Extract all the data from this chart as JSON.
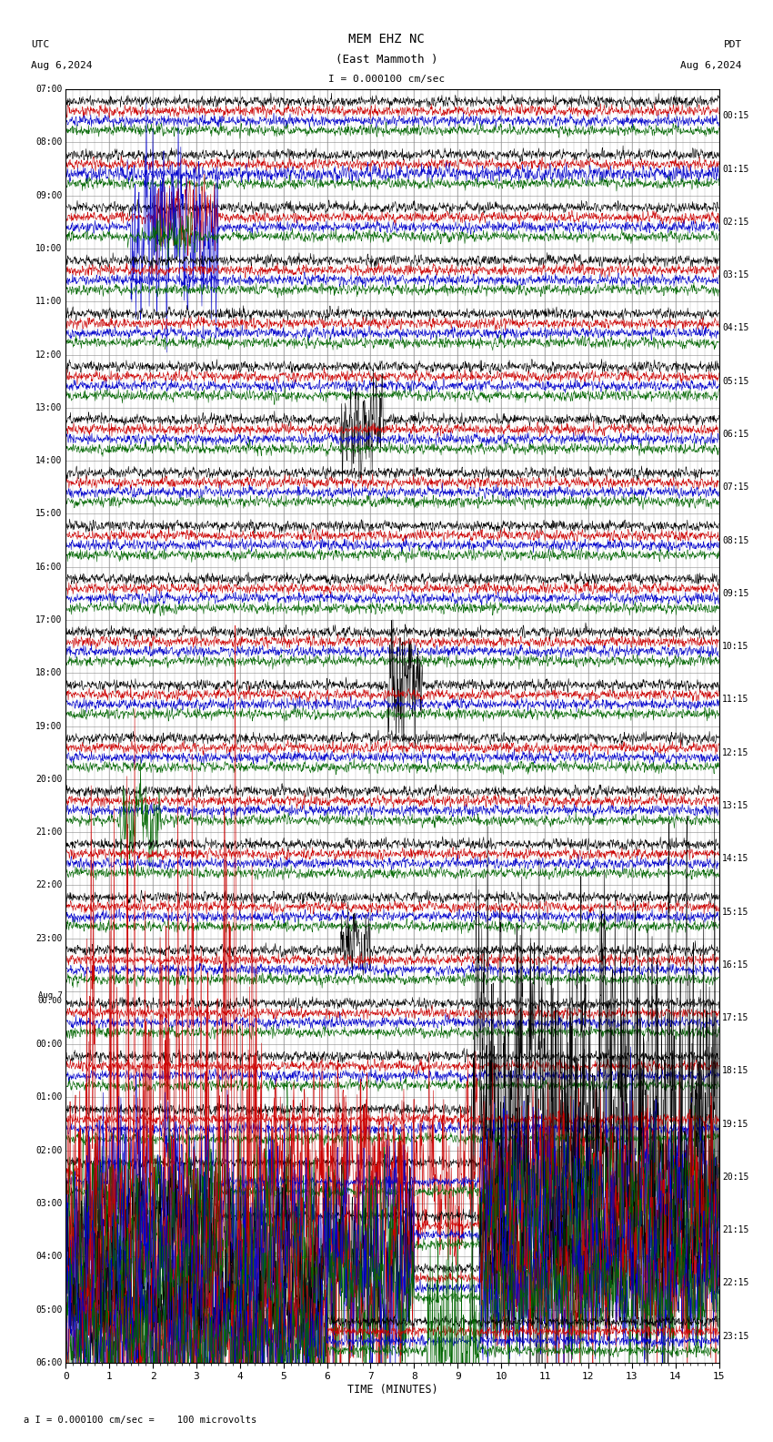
{
  "title_line1": "MEM EHZ NC",
  "title_line2": "(East Mammoth )",
  "scale_text": "I = 0.000100 cm/sec",
  "utc_label": "UTC",
  "pdt_label": "PDT",
  "date_left": "Aug 6,2024",
  "date_right": "Aug 6,2024",
  "bottom_label": "a I = 0.000100 cm/sec =    100 microvolts",
  "xlabel": "TIME (MINUTES)",
  "background_color": "#ffffff",
  "trace_colors": [
    "#000000",
    "#cc0000",
    "#0000cc",
    "#006600"
  ],
  "grid_color": "#888888",
  "text_color": "#000000",
  "left_times_utc": [
    "07:00",
    "08:00",
    "09:00",
    "10:00",
    "11:00",
    "12:00",
    "13:00",
    "14:00",
    "15:00",
    "16:00",
    "17:00",
    "18:00",
    "19:00",
    "20:00",
    "21:00",
    "22:00",
    "23:00",
    "Aug 7\n00:00",
    "01:00",
    "02:00",
    "03:00",
    "04:00",
    "05:00",
    "06:00"
  ],
  "left_times_utc_display": [
    "07:00",
    "08:00",
    "09:00",
    "10:00",
    "11:00",
    "12:00",
    "13:00",
    "14:00",
    "15:00",
    "16:00",
    "17:00",
    "18:00",
    "19:00",
    "20:00",
    "21:00",
    "22:00",
    "23:00",
    "Aug 7",
    "00:00",
    "01:00",
    "02:00",
    "03:00",
    "04:00",
    "05:00",
    "06:00"
  ],
  "right_times_pdt": [
    "00:15",
    "01:15",
    "02:15",
    "03:15",
    "04:15",
    "05:15",
    "06:15",
    "07:15",
    "08:15",
    "09:15",
    "10:15",
    "11:15",
    "12:15",
    "13:15",
    "14:15",
    "15:15",
    "16:15",
    "17:15",
    "18:15",
    "19:15",
    "20:15",
    "21:15",
    "22:15",
    "23:15"
  ],
  "n_rows": 24,
  "n_traces_per_row": 4,
  "minutes_per_row": 15,
  "plot_duration_minutes": 15,
  "figwidth": 8.5,
  "figheight": 15.84,
  "dpi": 100
}
